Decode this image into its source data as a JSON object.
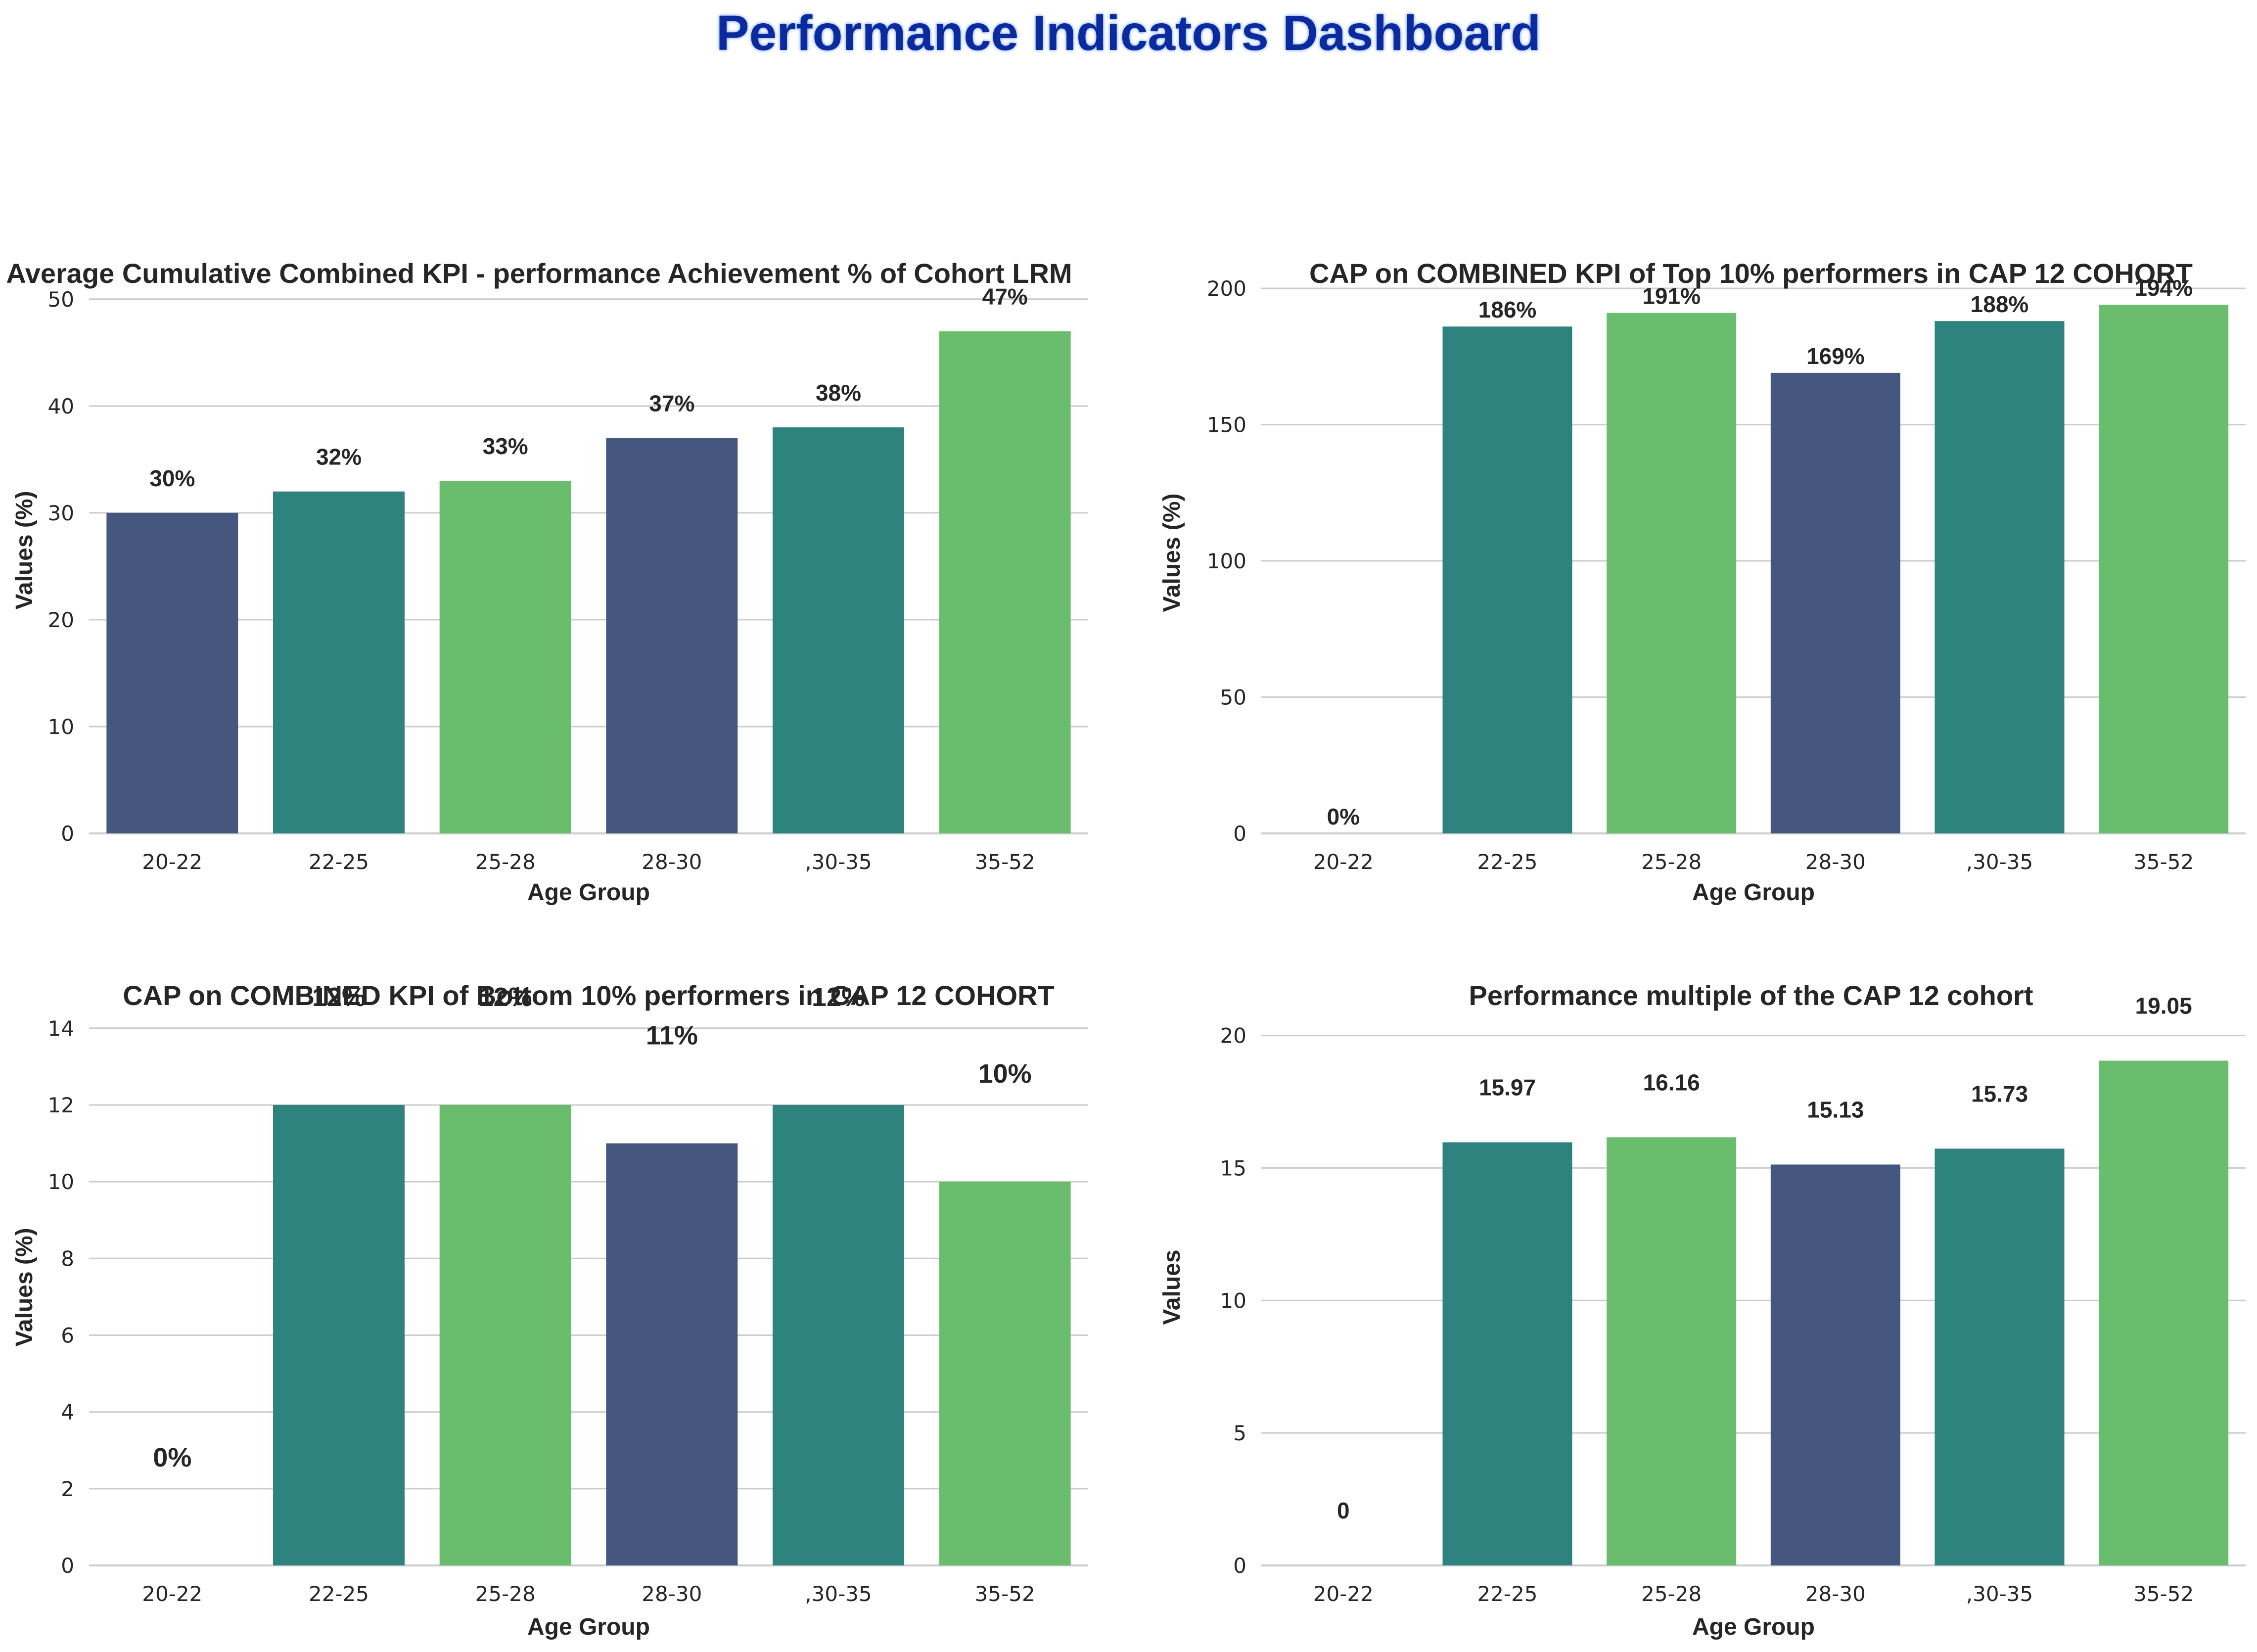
{
  "dashboard": {
    "title": "Performance Indicators Dashboard"
  },
  "chart_data": [
    {
      "type": "bar",
      "title": "Average Cumulative Combined KPI - performance Achievement % of Cohort LRM",
      "xlabel": "Age Group",
      "ylabel": "Values (%)",
      "categories": [
        "20-22",
        "22-25",
        "25-28",
        "28-30",
        ",30-35",
        "35-52"
      ],
      "values": [
        30,
        32,
        33,
        37,
        38,
        47
      ],
      "data_labels": [
        "30%",
        "32%",
        "33%",
        "37%",
        "38%",
        "47%"
      ],
      "ylim": [
        0,
        53
      ],
      "yticks": [
        0,
        10,
        20,
        30,
        40,
        50
      ],
      "grid": "horizontal",
      "colors": [
        "#45577f",
        "#2e837f",
        "#6abd6c",
        "#45577f",
        "#2e837f",
        "#6abd6c"
      ]
    },
    {
      "type": "bar",
      "title": "CAP on COMBINED KPI of Top 10% performers in CAP 12 COHORT",
      "xlabel": "Age Group",
      "ylabel": "Values (%)",
      "categories": [
        "20-22",
        "22-25",
        "25-28",
        "28-30",
        ",30-35",
        "35-52"
      ],
      "values": [
        0,
        186,
        191,
        169,
        188,
        194
      ],
      "data_labels": [
        "0%",
        "186%",
        "191%",
        "169%",
        "188%",
        "194%"
      ],
      "ylim": [
        0,
        206
      ],
      "yticks": [
        0,
        50,
        100,
        150,
        200
      ],
      "grid": "horizontal",
      "colors": [
        "#45577f",
        "#2e837f",
        "#6abd6c",
        "#45577f",
        "#2e837f",
        "#6abd6c"
      ]
    },
    {
      "type": "bar",
      "title": "CAP on COMBINED KPI of Bottom 10% performers in CAP 12 COHORT",
      "xlabel": "Age Group",
      "ylabel": "Values (%)",
      "categories": [
        "20-22",
        "22-25",
        "25-28",
        "28-30",
        ",30-35",
        "35-52"
      ],
      "values": [
        0,
        12,
        12,
        11,
        12,
        10
      ],
      "data_labels": [
        "0%",
        "12%",
        "12%",
        "11%",
        "12%",
        "10%"
      ],
      "ylim": [
        0,
        14.5
      ],
      "yticks": [
        0,
        2,
        4,
        6,
        8,
        10,
        12,
        14
      ],
      "grid": "horizontal",
      "colors": [
        "#45577f",
        "#2e837f",
        "#6abd6c",
        "#45577f",
        "#2e837f",
        "#6abd6c"
      ]
    },
    {
      "type": "bar",
      "title": "Performance multiple of the CAP 12 cohort",
      "xlabel": "Age Group",
      "ylabel": "Values",
      "categories": [
        "20-22",
        "22-25",
        "25-28",
        "28-30",
        ",30-35",
        "35-52"
      ],
      "values": [
        0,
        15.97,
        16.16,
        15.13,
        15.73,
        19.05
      ],
      "data_labels": [
        "0",
        "15.97",
        "16.16",
        "15.13",
        "15.73",
        "19.05"
      ],
      "ylim": [
        0,
        21
      ],
      "yticks": [
        0,
        5,
        10,
        15,
        20
      ],
      "grid": "horizontal",
      "colors": [
        "#45577f",
        "#2e837f",
        "#6abd6c",
        "#45577f",
        "#2e837f",
        "#6abd6c"
      ]
    }
  ]
}
